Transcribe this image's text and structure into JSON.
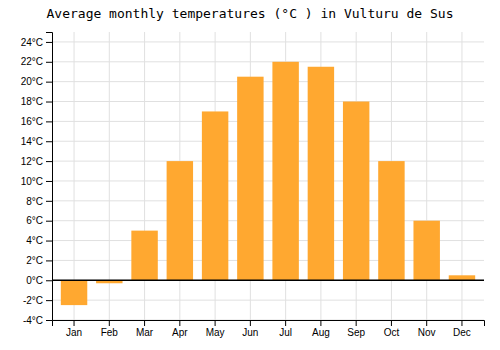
{
  "chart_data": {
    "type": "bar",
    "title": "Average monthly temperatures (°C ) in Vulturu de Sus",
    "categories": [
      "Jan",
      "Feb",
      "Mar",
      "Apr",
      "May",
      "Jun",
      "Jul",
      "Aug",
      "Sep",
      "Oct",
      "Nov",
      "Dec"
    ],
    "values": [
      -2.5,
      -0.3,
      5.0,
      12.0,
      17.0,
      20.5,
      22.0,
      21.5,
      18.0,
      12.0,
      6.0,
      0.5
    ],
    "color": "#FFA830",
    "ylim": [
      -4,
      25
    ],
    "yticks": [
      {
        "value": -4,
        "label": "-4°C"
      },
      {
        "value": -2,
        "label": "-2°C"
      },
      {
        "value": 0,
        "label": "0°C"
      },
      {
        "value": 2,
        "label": "2°C"
      },
      {
        "value": 4,
        "label": "4°C"
      },
      {
        "value": 6,
        "label": "6°C"
      },
      {
        "value": 8,
        "label": "8°C"
      },
      {
        "value": 10,
        "label": "10°C"
      },
      {
        "value": 12,
        "label": "12°C"
      },
      {
        "value": 14,
        "label": "14°C"
      },
      {
        "value": 16,
        "label": "16°C"
      },
      {
        "value": 18,
        "label": "18°C"
      },
      {
        "value": 20,
        "label": "20°C"
      },
      {
        "value": 22,
        "label": "22°C"
      },
      {
        "value": 24,
        "label": "24°C"
      }
    ],
    "grid": true
  }
}
